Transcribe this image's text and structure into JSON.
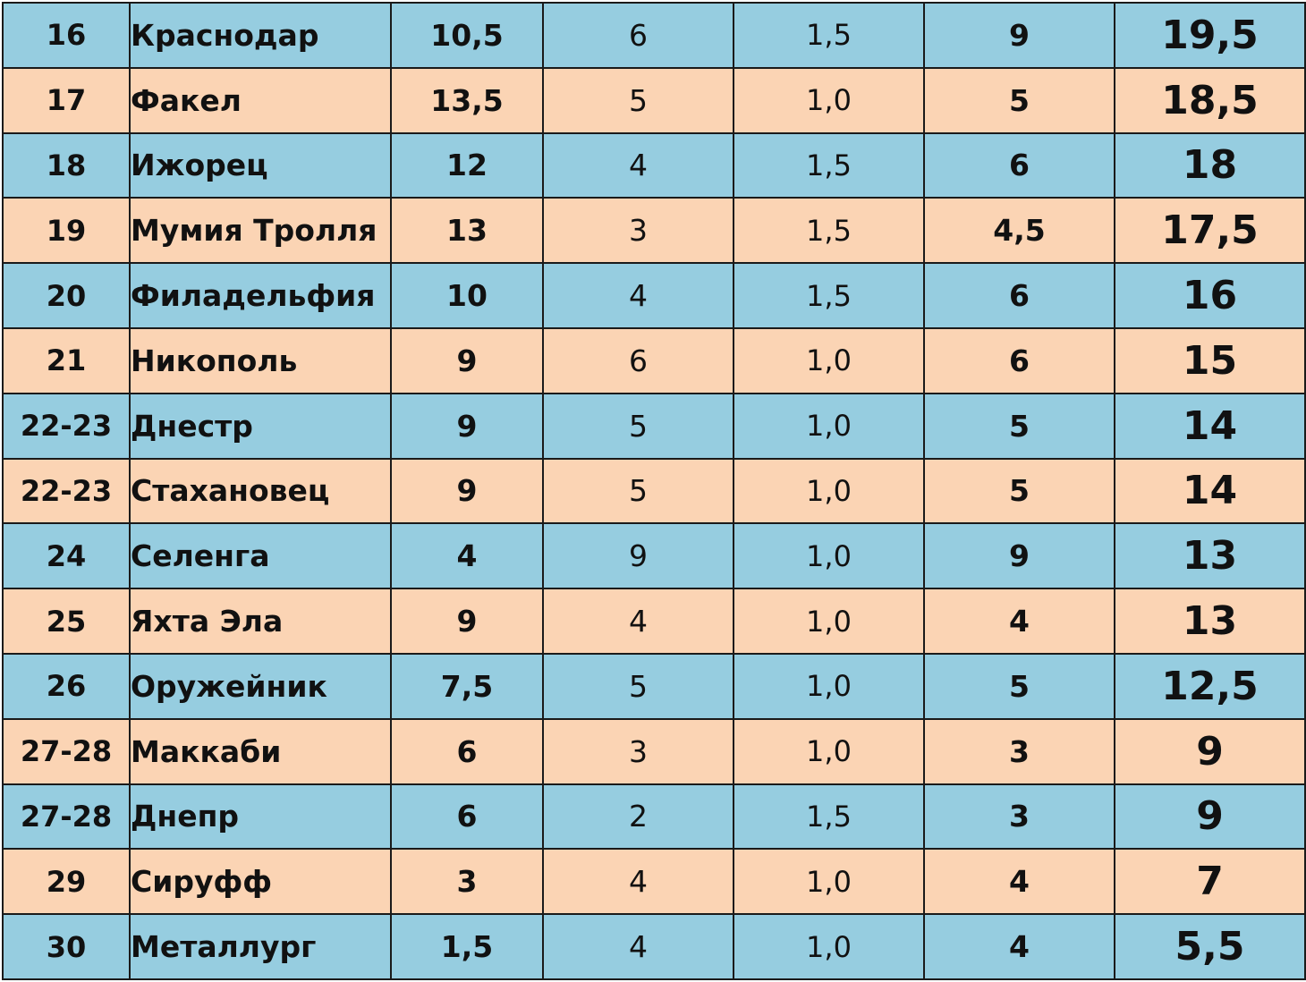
{
  "table": {
    "rows": [
      {
        "place": "16",
        "team": "Краснодар",
        "col1": "10,5",
        "col2": "6",
        "col3": "1,5",
        "col4": "9",
        "total": "19,5"
      },
      {
        "place": "17",
        "team": "Факел",
        "col1": "13,5",
        "col2": "5",
        "col3": "1,0",
        "col4": "5",
        "total": "18,5"
      },
      {
        "place": "18",
        "team": "Ижорец",
        "col1": "12",
        "col2": "4",
        "col3": "1,5",
        "col4": "6",
        "total": "18"
      },
      {
        "place": "19",
        "team": "Мумия Тролля",
        "col1": "13",
        "col2": "3",
        "col3": "1,5",
        "col4": "4,5",
        "total": "17,5"
      },
      {
        "place": "20",
        "team": "Филадельфия",
        "col1": "10",
        "col2": "4",
        "col3": "1,5",
        "col4": "6",
        "total": "16"
      },
      {
        "place": "21",
        "team": "Никополь",
        "col1": "9",
        "col2": "6",
        "col3": "1,0",
        "col4": "6",
        "total": "15"
      },
      {
        "place": "22-23",
        "team": "Днестр",
        "col1": "9",
        "col2": "5",
        "col3": "1,0",
        "col4": "5",
        "total": "14"
      },
      {
        "place": "22-23",
        "team": "Стахановец",
        "col1": "9",
        "col2": "5",
        "col3": "1,0",
        "col4": "5",
        "total": "14"
      },
      {
        "place": "24",
        "team": "Селенга",
        "col1": "4",
        "col2": "9",
        "col3": "1,0",
        "col4": "9",
        "total": "13"
      },
      {
        "place": "25",
        "team": "Яхта Эла",
        "col1": "9",
        "col2": "4",
        "col3": "1,0",
        "col4": "4",
        "total": "13"
      },
      {
        "place": "26",
        "team": "Оружейник",
        "col1": "7,5",
        "col2": "5",
        "col3": "1,0",
        "col4": "5",
        "total": "12,5"
      },
      {
        "place": "27-28",
        "team": "Маккаби",
        "col1": "6",
        "col2": "3",
        "col3": "1,0",
        "col4": "3",
        "total": "9"
      },
      {
        "place": "27-28",
        "team": "Днепр",
        "col1": "6",
        "col2": "2",
        "col3": "1,5",
        "col4": "3",
        "total": "9"
      },
      {
        "place": "29",
        "team": "Сируфф",
        "col1": "3",
        "col2": "4",
        "col3": "1,0",
        "col4": "4",
        "total": "7"
      },
      {
        "place": "30",
        "team": "Металлург",
        "col1": "1,5",
        "col2": "4",
        "col3": "1,0",
        "col4": "4",
        "total": "5,5"
      }
    ]
  },
  "colors": {
    "row_blue": "#96cde0",
    "row_peach": "#fbd4b4",
    "grid": "#1a1a1a"
  }
}
